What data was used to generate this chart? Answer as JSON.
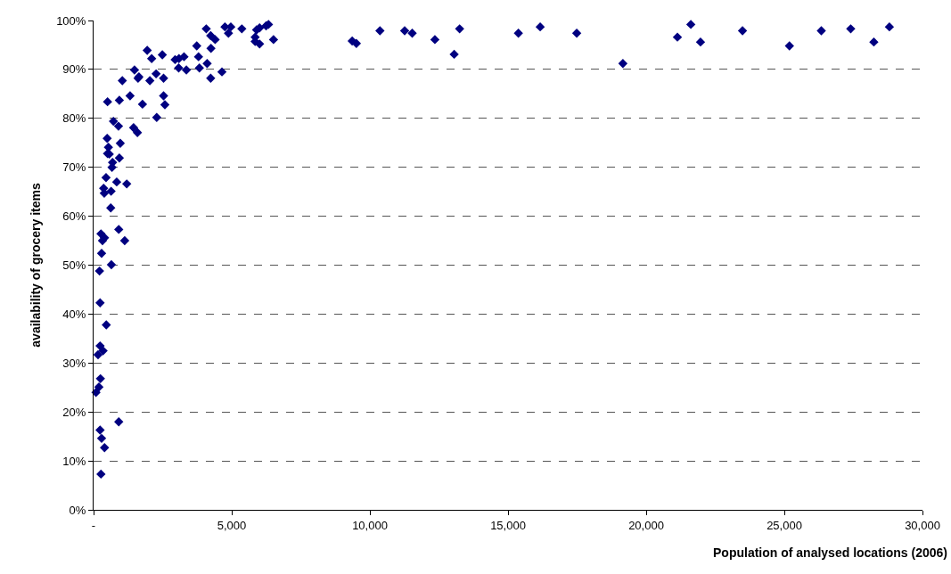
{
  "chart_data": {
    "type": "scatter",
    "xlabel": "Population of analysed locations (2006)",
    "ylabel": "availability of grocery items",
    "x": [
      4078,
      4238,
      4400,
      4754,
      4967,
      4882,
      5365,
      5900,
      6008,
      5847,
      5847,
      6008,
      6244,
      6330,
      6512,
      3734,
      4248,
      3798,
      1941,
      2102,
      2488,
      2950,
      3090,
      3273,
      3080,
      3358,
      3830,
      4110,
      4238,
      4646,
      1481,
      1641,
      1609,
      2263,
      2037,
      2533,
      1040,
      505,
      933,
      1320,
      1770,
      2533,
      2581,
      2285,
      718,
      901,
      1448,
      1587,
      492,
      966,
      537,
      505,
      569,
      933,
      686,
      666,
      451,
      837,
      1200,
      364,
      634,
      386,
      621,
      911,
      267,
      396,
      322,
      1126,
      290,
      644,
      215,
      235,
      460,
      235,
      344,
      161,
      248,
      193,
      87,
      911,
      235,
      290,
      396,
      267,
      9360,
      9511,
      10364,
      11259,
      11532,
      12353,
      13051,
      13248,
      15375,
      16164,
      17486,
      19157,
      21130,
      21616,
      21966,
      23486,
      25185,
      26339,
      27403,
      28240,
      28803
    ],
    "values": [
      98.3,
      96.9,
      96.1,
      98.7,
      98.7,
      97.4,
      98.3,
      98.1,
      98.5,
      96.6,
      95.7,
      95.2,
      98.9,
      99.2,
      96.1,
      94.8,
      94.3,
      92.6,
      93.9,
      92.2,
      93,
      92.0,
      92.2,
      92.6,
      90.3,
      89.9,
      90.3,
      91.2,
      88.2,
      89.5,
      89.9,
      88.5,
      88.2,
      89.1,
      87.7,
      88.2,
      87.7,
      83.4,
      83.7,
      84.6,
      82.9,
      84.6,
      82.8,
      80.2,
      79.4,
      78.4,
      78.1,
      77.1,
      75.9,
      74.9,
      74.1,
      72.8,
      72.7,
      71.9,
      71.0,
      70.0,
      67.9,
      67.0,
      66.6,
      65.7,
      65.1,
      64.7,
      61.7,
      57.3,
      56.4,
      55.6,
      55.0,
      55.0,
      52.4,
      50.1,
      48.8,
      42.3,
      37.8,
      33.5,
      32.5,
      31.7,
      26.8,
      25.1,
      24.0,
      18.0,
      16.3,
      14.6,
      12.7,
      7.3,
      95.8,
      95.3,
      97.9,
      97.9,
      97.4,
      96.1,
      93.1,
      98.3,
      97.4,
      98.7,
      97.4,
      91.2,
      96.6,
      99.2,
      95.6,
      97.9,
      94.8,
      97.9,
      98.3,
      95.6,
      98.7
    ],
    "color": "#000080",
    "marker": "diamond",
    "xlim": [
      0,
      30000
    ],
    "ylim": [
      0,
      100
    ],
    "xticks": [
      {
        "value": 0,
        "label": "-"
      },
      {
        "value": 5000,
        "label": "5,000"
      },
      {
        "value": 10000,
        "label": "10,000"
      },
      {
        "value": 15000,
        "label": "15,000"
      },
      {
        "value": 20000,
        "label": "20,000"
      },
      {
        "value": 25000,
        "label": "25,000"
      },
      {
        "value": 30000,
        "label": "30,000"
      }
    ],
    "yticks": [
      {
        "value": 0,
        "label": "0%"
      },
      {
        "value": 10,
        "label": "10%"
      },
      {
        "value": 20,
        "label": "20%"
      },
      {
        "value": 30,
        "label": "30%"
      },
      {
        "value": 40,
        "label": "40%"
      },
      {
        "value": 50,
        "label": "50%"
      },
      {
        "value": 60,
        "label": "60%"
      },
      {
        "value": 70,
        "label": "70%"
      },
      {
        "value": 80,
        "label": "80%"
      },
      {
        "value": 90,
        "label": "90%"
      },
      {
        "value": 100,
        "label": "100%"
      }
    ],
    "grid": "y"
  }
}
